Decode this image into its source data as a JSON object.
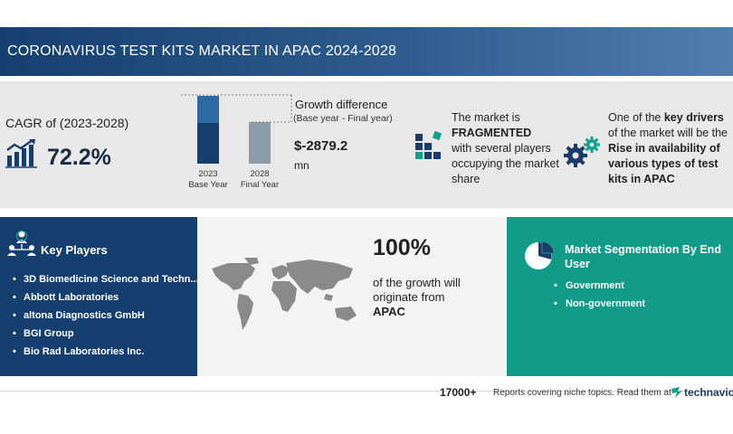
{
  "title": "CORONAVIRUS TEST KITS MARKET IN APAC 2024-2028",
  "cagr": {
    "label": "CAGR of (2023-2028)",
    "value": "72.2%"
  },
  "bars": {
    "base": {
      "year": "2023",
      "label": "Base Year"
    },
    "final": {
      "year": "2028",
      "label": "Final Year"
    }
  },
  "growth_difference": {
    "label": "Growth difference",
    "sub": "(Base year - Final year)",
    "value": "$-2879.2",
    "unit": "mn"
  },
  "market_structure": {
    "pre": "The market is",
    "emphasis": "FRAGMENTED",
    "post": "with several players occupying the market share"
  },
  "driver": {
    "pre": "One of the",
    "emphasis1": "key drivers",
    "mid": "of the market will be the",
    "emphasis2": "Rise in availability of various types of test kits in APAC"
  },
  "key_players": {
    "title": "Key Players",
    "items": [
      "3D Biomedicine Science and Techn...",
      "Abbott Laboratories",
      "altona Diagnostics GmbH",
      "BGI Group",
      "Bio Rad Laboratories Inc."
    ]
  },
  "growth_origin": {
    "percent": "100%",
    "text": "of the growth will originate from",
    "region": "APAC"
  },
  "segmentation": {
    "title": "Market Segmentation By End User",
    "items": [
      "Government",
      "Non-government"
    ]
  },
  "footer": {
    "count": "17000+",
    "text": "Reports covering niche topics. Read them at",
    "brand": "technavio"
  },
  "colors": {
    "title_bar": "#1d4a7c",
    "stats_bg": "#e8e8e8",
    "key_players_bg": "#153f6e",
    "segmentation_bg": "#119c8a",
    "bar_dark": "#173f6e",
    "bar_light": "#2e6aa6",
    "bar_grey": "#8e9bab"
  }
}
